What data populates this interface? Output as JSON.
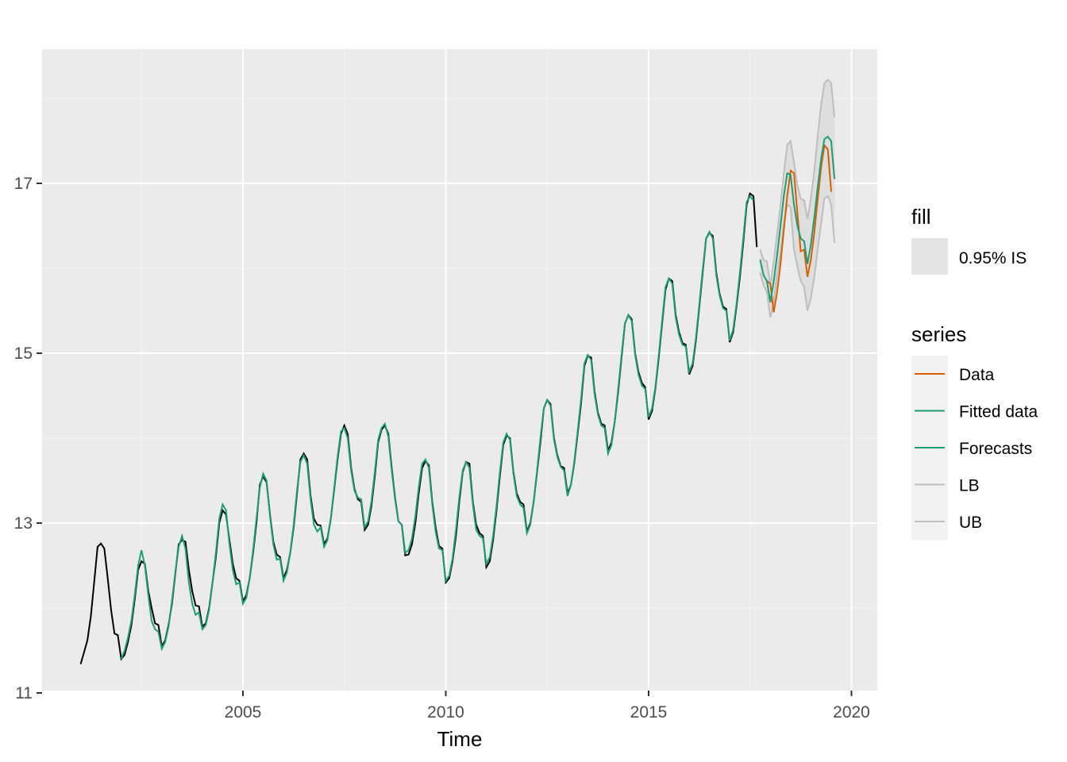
{
  "chart_data": {
    "type": "line",
    "title": "",
    "xlabel": "Time",
    "ylabel": "",
    "xlim": [
      2000.0,
      2020.0
    ],
    "ylim": [
      11.0,
      18.5
    ],
    "x_ticks": [
      2005,
      2010,
      2015,
      2020
    ],
    "y_ticks": [
      11,
      13,
      15,
      17
    ],
    "grid": true,
    "legend_position": "right",
    "fill_legend": {
      "title": "fill",
      "label": "0.95% IS"
    },
    "series_legend_title": "series",
    "colors": {
      "observed": "#000000",
      "Data": "#d95f02",
      "Fitted data": "#1b9e77",
      "Forecasts": "#1b9e77",
      "LB": "#bebebe",
      "UB": "#bebebe",
      "band": "#d9d9d9",
      "panel": "#ebebeb"
    },
    "observed": {
      "start": 2001.0,
      "step": 0.0833333,
      "values": [
        11.34,
        11.48,
        11.62,
        11.9,
        12.3,
        12.72,
        12.76,
        12.7,
        12.35,
        11.98,
        11.7,
        11.68,
        11.4,
        11.45,
        11.6,
        11.8,
        12.1,
        12.45,
        12.55,
        12.52,
        12.2,
        12.0,
        11.82,
        11.8,
        11.55,
        11.62,
        11.8,
        12.05,
        12.4,
        12.75,
        12.8,
        12.78,
        12.45,
        12.2,
        12.03,
        12.02,
        11.78,
        11.82,
        12.0,
        12.3,
        12.6,
        13.0,
        13.15,
        13.1,
        12.8,
        12.52,
        12.35,
        12.32,
        12.08,
        12.15,
        12.35,
        12.65,
        13.0,
        13.45,
        13.55,
        13.48,
        13.1,
        12.78,
        12.63,
        12.6,
        12.35,
        12.45,
        12.65,
        12.95,
        13.35,
        13.75,
        13.82,
        13.75,
        13.32,
        13.05,
        12.98,
        12.97,
        12.75,
        12.82,
        13.05,
        13.4,
        13.75,
        14.05,
        14.15,
        14.05,
        13.65,
        13.4,
        13.28,
        13.25,
        12.92,
        12.98,
        13.2,
        13.55,
        13.95,
        14.1,
        14.15,
        14.05,
        13.65,
        13.3,
        13.02,
        12.98,
        12.62,
        12.63,
        12.75,
        13.0,
        13.35,
        13.65,
        13.73,
        13.68,
        13.25,
        12.95,
        12.73,
        12.7,
        12.3,
        12.35,
        12.55,
        12.85,
        13.25,
        13.6,
        13.72,
        13.7,
        13.25,
        12.98,
        12.88,
        12.85,
        12.48,
        12.55,
        12.8,
        13.15,
        13.55,
        13.92,
        14.03,
        14.0,
        13.6,
        13.35,
        13.25,
        13.22,
        12.9,
        13.0,
        13.25,
        13.6,
        13.95,
        14.35,
        14.45,
        14.4,
        14.0,
        13.8,
        13.67,
        13.65,
        13.35,
        13.45,
        13.7,
        14.05,
        14.4,
        14.85,
        14.97,
        14.95,
        14.55,
        14.3,
        14.17,
        14.15,
        13.85,
        13.95,
        14.2,
        14.55,
        14.95,
        15.35,
        15.45,
        15.4,
        15.0,
        14.78,
        14.65,
        14.6,
        14.22,
        14.32,
        14.58,
        14.95,
        15.35,
        15.75,
        15.88,
        15.85,
        15.45,
        15.25,
        15.12,
        15.1,
        14.75,
        14.85,
        15.15,
        15.55,
        15.95,
        16.35,
        16.42,
        16.38,
        15.95,
        15.7,
        15.55,
        15.52,
        15.13,
        15.25,
        15.55,
        15.9,
        16.3,
        16.75,
        16.88,
        16.85,
        16.25
      ]
    },
    "fitted": {
      "start": 2002.0,
      "step": 0.0833333,
      "values": [
        11.4,
        11.5,
        11.65,
        11.85,
        12.15,
        12.5,
        12.68,
        12.5,
        12.15,
        11.85,
        11.75,
        11.72,
        11.52,
        11.6,
        11.78,
        12.08,
        12.42,
        12.72,
        12.85,
        12.7,
        12.3,
        12.05,
        11.92,
        11.95,
        11.75,
        11.8,
        11.98,
        12.3,
        12.65,
        13.05,
        13.22,
        13.15,
        12.75,
        12.45,
        12.28,
        12.3,
        12.05,
        12.12,
        12.35,
        12.68,
        13.05,
        13.42,
        13.58,
        13.5,
        13.08,
        12.75,
        12.57,
        12.58,
        12.32,
        12.42,
        12.65,
        12.98,
        13.38,
        13.72,
        13.8,
        13.7,
        13.28,
        12.98,
        12.9,
        12.95,
        12.72,
        12.8,
        13.05,
        13.42,
        13.78,
        14.08,
        14.12,
        14.0,
        13.62,
        13.38,
        13.3,
        13.28,
        12.95,
        13.02,
        13.25,
        13.6,
        13.98,
        14.12,
        14.17,
        14.02,
        13.62,
        13.28,
        13.02,
        12.98,
        12.65,
        12.68,
        12.82,
        13.08,
        13.42,
        13.7,
        13.75,
        13.65,
        13.22,
        12.9,
        12.7,
        12.68,
        12.32,
        12.38,
        12.58,
        12.92,
        13.3,
        13.62,
        13.72,
        13.65,
        13.22,
        12.92,
        12.85,
        12.82,
        12.52,
        12.6,
        12.85,
        13.2,
        13.6,
        13.95,
        14.05,
        13.98,
        13.58,
        13.32,
        13.22,
        13.18,
        12.88,
        12.98,
        13.25,
        13.62,
        14.0,
        14.35,
        14.45,
        14.38,
        13.98,
        13.78,
        13.66,
        13.62,
        13.32,
        13.45,
        13.72,
        14.08,
        14.45,
        14.88,
        14.98,
        14.92,
        14.52,
        14.28,
        14.15,
        14.12,
        13.82,
        13.92,
        14.2,
        14.58,
        14.98,
        15.35,
        15.45,
        15.38,
        14.98,
        14.75,
        14.62,
        14.58,
        14.25,
        14.35,
        14.6,
        14.98,
        15.38,
        15.78,
        15.88,
        15.82,
        15.42,
        15.22,
        15.1,
        15.08,
        14.78,
        14.88,
        15.18,
        15.58,
        15.98,
        16.35,
        16.43,
        16.35,
        15.92,
        15.68,
        15.53,
        15.5,
        15.15,
        15.28,
        15.58,
        15.95,
        16.35,
        16.78,
        16.85,
        16.8
      ]
    },
    "forecasts": {
      "start": 2017.75,
      "step": 0.0833333,
      "values": [
        16.1,
        15.92,
        15.85,
        15.6,
        15.85,
        16.15,
        16.5,
        16.85,
        17.12,
        17.1,
        16.75,
        16.5,
        16.35,
        16.32,
        16.05,
        16.28,
        16.6,
        16.95,
        17.28,
        17.52,
        17.55,
        17.5,
        17.05
      ]
    },
    "actuals": {
      "start": 2017.9167,
      "step": 0.0833333,
      "values": [
        15.85,
        15.82,
        15.48,
        15.72,
        16.05,
        16.45,
        16.85,
        17.15,
        17.12,
        16.65,
        16.2,
        16.22,
        15.9,
        16.1,
        16.42,
        16.8,
        17.18,
        17.45,
        17.4,
        16.9
      ]
    },
    "lower": {
      "start": 2017.75,
      "step": 0.0833333,
      "values": [
        15.95,
        15.8,
        15.72,
        15.42,
        15.6,
        15.92,
        16.18,
        16.52,
        16.75,
        16.72,
        16.22,
        16.02,
        15.85,
        15.78,
        15.5,
        15.65,
        15.9,
        16.22,
        16.52,
        16.82,
        16.85,
        16.75,
        16.3
      ]
    },
    "upper": {
      "start": 2017.75,
      "step": 0.0833333,
      "values": [
        16.22,
        16.1,
        16.08,
        15.8,
        16.08,
        16.4,
        16.75,
        17.12,
        17.45,
        17.5,
        17.25,
        16.98,
        16.82,
        16.8,
        16.58,
        16.82,
        17.15,
        17.55,
        17.92,
        18.18,
        18.22,
        18.18,
        17.78
      ]
    },
    "legend_entries": [
      "Data",
      "Fitted data",
      "Forecasts",
      "LB",
      "UB"
    ]
  }
}
